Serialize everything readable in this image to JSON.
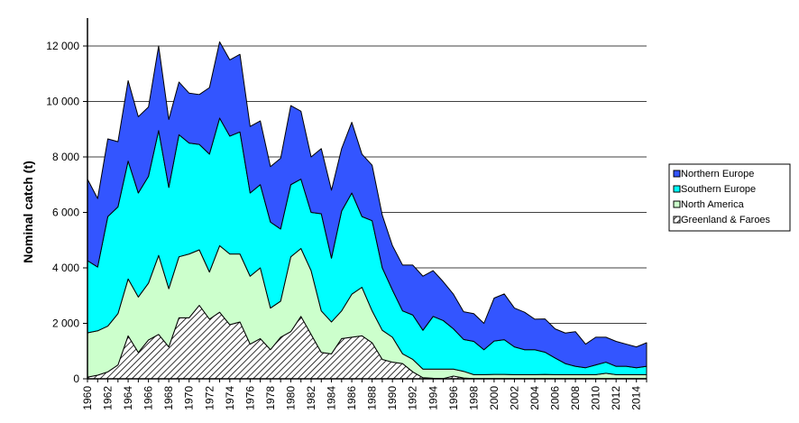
{
  "chart_data": {
    "type": "area",
    "stacked": true,
    "title": "",
    "xlabel": "",
    "ylabel": "Nominal catch (t)",
    "ylim": [
      0,
      12000
    ],
    "yticks": [
      0,
      2000,
      4000,
      6000,
      8000,
      10000,
      12000
    ],
    "ytick_labels": [
      "0",
      "2 000",
      "4 000",
      "6 000",
      "8 000",
      "10 000",
      "12 000"
    ],
    "xlim": [
      1960,
      2015
    ],
    "xticks": [
      1960,
      1962,
      1964,
      1966,
      1968,
      1970,
      1972,
      1974,
      1976,
      1978,
      1980,
      1982,
      1984,
      1986,
      1988,
      1990,
      1992,
      1994,
      1996,
      1998,
      2000,
      2002,
      2004,
      2006,
      2008,
      2010,
      2012,
      2014
    ],
    "grid": true,
    "legend_position": "right",
    "x": [
      1960,
      1961,
      1962,
      1963,
      1964,
      1965,
      1966,
      1967,
      1968,
      1969,
      1970,
      1971,
      1972,
      1973,
      1974,
      1975,
      1976,
      1977,
      1978,
      1979,
      1980,
      1981,
      1982,
      1983,
      1984,
      1985,
      1986,
      1987,
      1988,
      1989,
      1990,
      1991,
      1992,
      1993,
      1994,
      1995,
      1996,
      1997,
      1998,
      1999,
      2000,
      2001,
      2002,
      2003,
      2004,
      2005,
      2006,
      2007,
      2008,
      2009,
      2010,
      2011,
      2012,
      2013,
      2014,
      2015
    ],
    "series": [
      {
        "name": "Greenland & Faroes",
        "color": "#ffffff",
        "pattern": "hatch",
        "values": [
          60,
          130,
          250,
          500,
          1550,
          950,
          1400,
          1600,
          1150,
          2200,
          2200,
          2650,
          2150,
          2400,
          1950,
          2050,
          1250,
          1450,
          1050,
          1500,
          1700,
          2250,
          1600,
          950,
          900,
          1450,
          1500,
          1550,
          1300,
          700,
          600,
          550,
          250,
          40,
          20,
          10,
          100,
          30,
          10,
          10,
          10,
          10,
          10,
          10,
          10,
          10,
          10,
          10,
          10,
          10,
          10,
          10,
          10,
          10,
          10,
          10
        ]
      },
      {
        "name": "North America",
        "color": "#ccffcc",
        "values": [
          1600,
          1600,
          1650,
          1850,
          2050,
          2000,
          2050,
          2850,
          2100,
          2200,
          2300,
          2000,
          1700,
          2400,
          2550,
          2450,
          2450,
          2550,
          1500,
          1300,
          2700,
          2450,
          2300,
          1500,
          1150,
          1000,
          1550,
          1750,
          1150,
          1050,
          900,
          350,
          450,
          310,
          330,
          340,
          250,
          240,
          140,
          140,
          150,
          150,
          140,
          140,
          140,
          150,
          140,
          140,
          140,
          140,
          140,
          190,
          140,
          140,
          140,
          140
        ]
      },
      {
        "name": "Southern Europe",
        "color": "#00ffff",
        "values": [
          2600,
          2300,
          3950,
          3850,
          4250,
          3750,
          3850,
          4500,
          3650,
          4400,
          4000,
          3800,
          4250,
          4600,
          4250,
          4400,
          3000,
          3000,
          3100,
          2600,
          2600,
          2500,
          2100,
          3500,
          2300,
          3600,
          3650,
          2550,
          3250,
          2250,
          1700,
          1550,
          1600,
          1400,
          1900,
          1750,
          1450,
          1150,
          1200,
          900,
          1200,
          1250,
          1000,
          900,
          900,
          800,
          600,
          400,
          300,
          250,
          350,
          400,
          300,
          300,
          250,
          300
        ]
      },
      {
        "name": "Northern Europe",
        "color": "#3355ff",
        "values": [
          2940,
          2470,
          2800,
          2350,
          2900,
          2750,
          2500,
          3050,
          2450,
          1900,
          1800,
          1800,
          2400,
          2750,
          2750,
          2800,
          2400,
          2300,
          2000,
          2550,
          2850,
          2450,
          2000,
          2350,
          2450,
          2250,
          2550,
          2250,
          2000,
          1900,
          1600,
          1650,
          1800,
          1950,
          1650,
          1400,
          1250,
          1000,
          1000,
          950,
          1550,
          1650,
          1400,
          1350,
          1100,
          1200,
          1050,
          1100,
          1250,
          850,
          1000,
          900,
          900,
          800,
          750,
          850
        ]
      }
    ]
  }
}
